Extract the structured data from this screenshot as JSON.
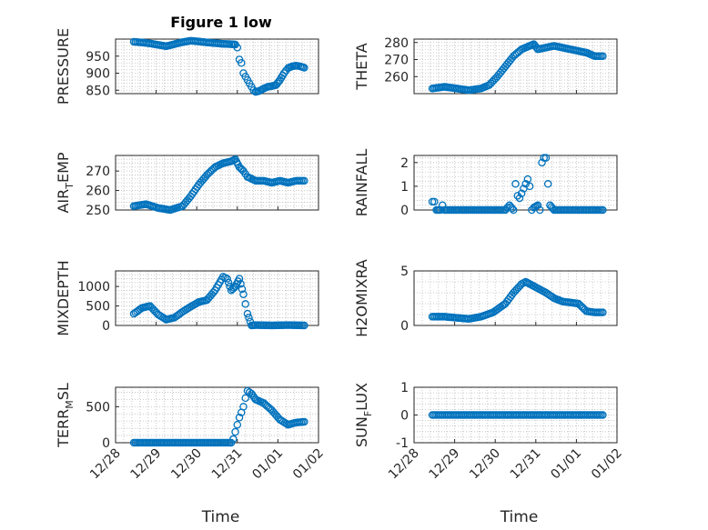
{
  "figure": {
    "title": "Figure 1 low",
    "marker_color": "#0072BD",
    "x_axis": {
      "label": "Time",
      "range": [
        "2016-12-28",
        "2017-01-02"
      ],
      "ticks": [
        "12/28",
        "12/29",
        "12/30",
        "12/31",
        "01/01",
        "01/02"
      ]
    }
  },
  "chart_data": [
    {
      "type": "scatter",
      "ylabel_parts": [
        "PRESSURE"
      ],
      "ylim": [
        840,
        1000
      ],
      "yticks": [
        850,
        900,
        950
      ],
      "ytick_labels": [
        "850",
        "900",
        "950"
      ],
      "points": [
        [
          0.0,
          992
        ],
        [
          0.2,
          990
        ],
        [
          0.4,
          987
        ],
        [
          0.6,
          983
        ],
        [
          0.8,
          979
        ],
        [
          1.0,
          985
        ],
        [
          1.2,
          991
        ],
        [
          1.4,
          995
        ],
        [
          1.6,
          993
        ],
        [
          1.8,
          990
        ],
        [
          2.0,
          988
        ],
        [
          2.2,
          986
        ],
        [
          2.4,
          985
        ],
        [
          2.5,
          984
        ],
        [
          2.55,
          975
        ],
        [
          2.6,
          940
        ],
        [
          2.65,
          930
        ],
        [
          2.7,
          900
        ],
        [
          2.75,
          890
        ],
        [
          2.8,
          880
        ],
        [
          2.85,
          870
        ],
        [
          2.9,
          860
        ],
        [
          2.95,
          850
        ],
        [
          3.0,
          845
        ],
        [
          3.1,
          848
        ],
        [
          3.2,
          855
        ],
        [
          3.3,
          860
        ],
        [
          3.4,
          862
        ],
        [
          3.5,
          865
        ],
        [
          3.6,
          880
        ],
        [
          3.7,
          900
        ],
        [
          3.8,
          915
        ],
        [
          3.9,
          920
        ],
        [
          4.0,
          922
        ],
        [
          4.1,
          920
        ],
        [
          4.2,
          916
        ]
      ]
    },
    {
      "type": "scatter",
      "ylabel_parts": [
        "THETA"
      ],
      "ylim": [
        250,
        282
      ],
      "yticks": [
        260,
        270,
        280
      ],
      "ytick_labels": [
        "260",
        "270",
        "280"
      ],
      "points": [
        [
          0.0,
          253
        ],
        [
          0.3,
          254
        ],
        [
          0.6,
          253
        ],
        [
          0.9,
          252
        ],
        [
          1.2,
          253
        ],
        [
          1.4,
          255
        ],
        [
          1.6,
          260
        ],
        [
          1.8,
          266
        ],
        [
          2.0,
          272
        ],
        [
          2.2,
          276
        ],
        [
          2.4,
          278
        ],
        [
          2.5,
          279
        ],
        [
          2.6,
          276
        ],
        [
          2.8,
          277
        ],
        [
          3.0,
          278
        ],
        [
          3.2,
          277
        ],
        [
          3.4,
          276
        ],
        [
          3.6,
          275
        ],
        [
          3.8,
          274
        ],
        [
          4.0,
          272
        ],
        [
          4.2,
          272
        ]
      ]
    },
    {
      "type": "scatter",
      "ylabel_parts": [
        "AIR",
        "T",
        "EMP"
      ],
      "ylim": [
        250,
        278
      ],
      "yticks": [
        250,
        260,
        270
      ],
      "ytick_labels": [
        "250",
        "260",
        "270"
      ],
      "points": [
        [
          0.0,
          252
        ],
        [
          0.3,
          253
        ],
        [
          0.6,
          251
        ],
        [
          0.9,
          250
        ],
        [
          1.2,
          252
        ],
        [
          1.4,
          257
        ],
        [
          1.6,
          263
        ],
        [
          1.8,
          268
        ],
        [
          2.0,
          272
        ],
        [
          2.2,
          274
        ],
        [
          2.4,
          275
        ],
        [
          2.5,
          276
        ],
        [
          2.6,
          272
        ],
        [
          2.7,
          270
        ],
        [
          2.8,
          267
        ],
        [
          3.0,
          265
        ],
        [
          3.2,
          265
        ],
        [
          3.4,
          264
        ],
        [
          3.6,
          265
        ],
        [
          3.8,
          264
        ],
        [
          4.0,
          265
        ],
        [
          4.2,
          265
        ]
      ]
    },
    {
      "type": "scatter",
      "ylabel_parts": [
        "RAINFALL"
      ],
      "ylim": [
        0,
        2.3
      ],
      "yticks": [
        0,
        1,
        2
      ],
      "ytick_labels": [
        "0",
        "1",
        "2"
      ],
      "points": [
        [
          0.0,
          0.35
        ],
        [
          0.05,
          0.35
        ],
        [
          0.1,
          0.0
        ],
        [
          0.2,
          0.0
        ],
        [
          0.25,
          0.2
        ],
        [
          0.3,
          0.0
        ],
        [
          0.6,
          0.0
        ],
        [
          1.0,
          0.0
        ],
        [
          1.4,
          0.0
        ],
        [
          1.8,
          0.0
        ],
        [
          1.9,
          0.2
        ],
        [
          2.0,
          0.0
        ],
        [
          2.05,
          1.1
        ],
        [
          2.1,
          0.6
        ],
        [
          2.15,
          0.5
        ],
        [
          2.2,
          0.7
        ],
        [
          2.25,
          0.9
        ],
        [
          2.3,
          1.1
        ],
        [
          2.35,
          1.3
        ],
        [
          2.4,
          1.0
        ],
        [
          2.45,
          0.0
        ],
        [
          2.5,
          0.1
        ],
        [
          2.6,
          0.2
        ],
        [
          2.65,
          0.0
        ],
        [
          2.7,
          2.0
        ],
        [
          2.75,
          2.2
        ],
        [
          2.8,
          2.2
        ],
        [
          2.85,
          1.1
        ],
        [
          2.9,
          0.2
        ],
        [
          3.0,
          0.0
        ],
        [
          3.5,
          0.0
        ],
        [
          4.0,
          0.0
        ],
        [
          4.2,
          0.0
        ]
      ]
    },
    {
      "type": "scatter",
      "ylabel_parts": [
        "MIXDEPTH"
      ],
      "ylim": [
        0,
        1400
      ],
      "yticks": [
        0,
        500,
        1000
      ],
      "ytick_labels": [
        "0",
        "500",
        "1000"
      ],
      "points": [
        [
          0.0,
          300
        ],
        [
          0.2,
          450
        ],
        [
          0.4,
          500
        ],
        [
          0.6,
          280
        ],
        [
          0.8,
          150
        ],
        [
          1.0,
          200
        ],
        [
          1.2,
          350
        ],
        [
          1.4,
          480
        ],
        [
          1.6,
          600
        ],
        [
          1.8,
          650
        ],
        [
          2.0,
          900
        ],
        [
          2.2,
          1250
        ],
        [
          2.3,
          1200
        ],
        [
          2.4,
          900
        ],
        [
          2.5,
          1000
        ],
        [
          2.6,
          1200
        ],
        [
          2.7,
          800
        ],
        [
          2.8,
          300
        ],
        [
          2.9,
          0
        ],
        [
          3.0,
          10
        ],
        [
          3.4,
          0
        ],
        [
          3.8,
          10
        ],
        [
          4.2,
          0
        ]
      ]
    },
    {
      "type": "scatter",
      "ylabel_parts": [
        "H2OMIXRA"
      ],
      "ylim": [
        0,
        5
      ],
      "yticks": [
        0,
        5
      ],
      "ytick_labels": [
        "0",
        "5"
      ],
      "points": [
        [
          0.0,
          0.8
        ],
        [
          0.3,
          0.8
        ],
        [
          0.6,
          0.7
        ],
        [
          0.9,
          0.6
        ],
        [
          1.2,
          0.8
        ],
        [
          1.5,
          1.2
        ],
        [
          1.8,
          2.0
        ],
        [
          2.0,
          3.0
        ],
        [
          2.2,
          3.8
        ],
        [
          2.3,
          4.0
        ],
        [
          2.4,
          3.8
        ],
        [
          2.6,
          3.4
        ],
        [
          2.8,
          3.0
        ],
        [
          3.0,
          2.5
        ],
        [
          3.2,
          2.2
        ],
        [
          3.4,
          2.1
        ],
        [
          3.6,
          2.0
        ],
        [
          3.8,
          1.3
        ],
        [
          4.0,
          1.2
        ],
        [
          4.2,
          1.2
        ]
      ]
    },
    {
      "type": "scatter",
      "ylabel_parts": [
        "TERR",
        "M",
        "SL"
      ],
      "ylim": [
        0,
        770
      ],
      "yticks": [
        0,
        500
      ],
      "ytick_labels": [
        "0",
        "500"
      ],
      "points": [
        [
          0.0,
          0
        ],
        [
          0.5,
          0
        ],
        [
          1.0,
          0
        ],
        [
          1.5,
          0
        ],
        [
          2.0,
          0
        ],
        [
          2.4,
          0
        ],
        [
          2.45,
          50
        ],
        [
          2.5,
          150
        ],
        [
          2.55,
          250
        ],
        [
          2.6,
          350
        ],
        [
          2.65,
          420
        ],
        [
          2.7,
          500
        ],
        [
          2.75,
          620
        ],
        [
          2.8,
          720
        ],
        [
          2.85,
          700
        ],
        [
          2.9,
          680
        ],
        [
          3.0,
          600
        ],
        [
          3.2,
          550
        ],
        [
          3.4,
          450
        ],
        [
          3.6,
          320
        ],
        [
          3.8,
          250
        ],
        [
          4.0,
          280
        ],
        [
          4.2,
          290
        ]
      ]
    },
    {
      "type": "scatter",
      "ylabel_parts": [
        "SUN",
        "F",
        "LUX"
      ],
      "ylim": [
        -1,
        1
      ],
      "yticks": [
        -1,
        0,
        1
      ],
      "ytick_labels": [
        "-1",
        "0",
        "1"
      ],
      "points": [
        [
          0.0,
          0
        ],
        [
          4.2,
          0
        ]
      ]
    }
  ]
}
